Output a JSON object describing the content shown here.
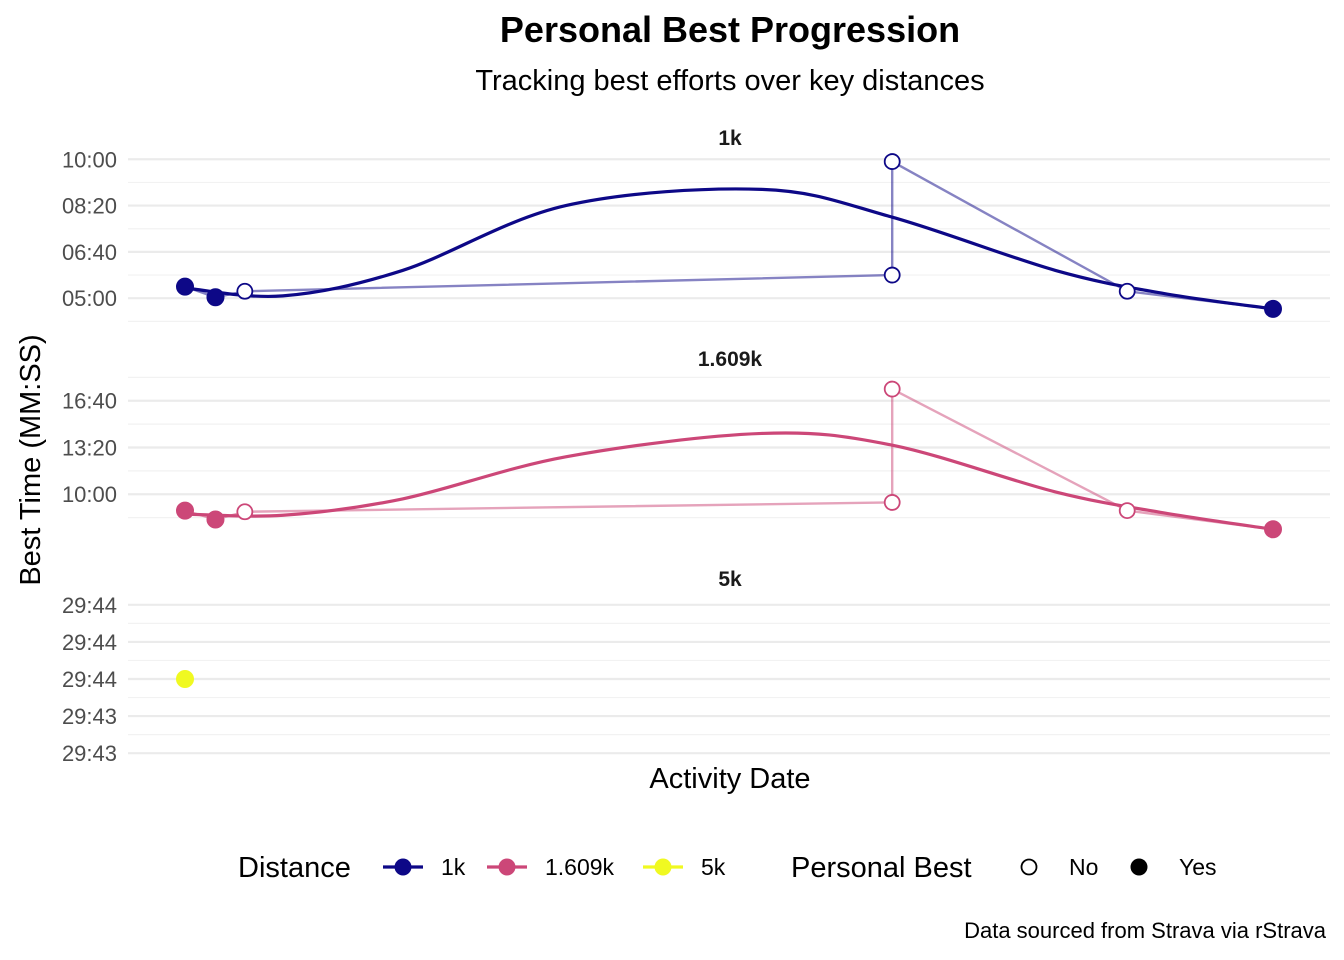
{
  "chart_data": {
    "type": "line",
    "title": "Personal Best Progression",
    "subtitle": "Tracking best efforts over key distances",
    "xlabel": "Activity Date",
    "ylabel": "Best Time (MM:SS)",
    "caption": "Data sourced from Strava via rStrava",
    "x_range": [
      0,
      1
    ],
    "facets": [
      {
        "name": "1k",
        "color": "#0d0887",
        "ylim": [
          240,
          620
        ],
        "y_ticks": [
          {
            "value": 300,
            "label": "05:00"
          },
          {
            "value": 400,
            "label": "06:40"
          },
          {
            "value": 500,
            "label": "08:20"
          },
          {
            "value": 600,
            "label": "10:00"
          }
        ],
        "points": [
          {
            "x": 0.0,
            "y": 325,
            "pb": true
          },
          {
            "x": 0.028,
            "y": 302,
            "pb": true
          },
          {
            "x": 0.055,
            "y": 315,
            "pb": false
          },
          {
            "x": 0.65,
            "y": 350,
            "pb": false
          },
          {
            "x": 0.65,
            "y": 595,
            "pb": false
          },
          {
            "x": 0.866,
            "y": 315,
            "pb": false
          },
          {
            "x": 1.0,
            "y": 277,
            "pb": true
          }
        ],
        "smooth": [
          {
            "x": 0.0,
            "y": 322
          },
          {
            "x": 0.09,
            "y": 305
          },
          {
            "x": 0.2,
            "y": 360
          },
          {
            "x": 0.35,
            "y": 500
          },
          {
            "x": 0.53,
            "y": 535
          },
          {
            "x": 0.65,
            "y": 475
          },
          {
            "x": 0.8,
            "y": 360
          },
          {
            "x": 0.9,
            "y": 310
          },
          {
            "x": 1.0,
            "y": 277
          }
        ]
      },
      {
        "name": "1.609k",
        "color": "#cc4778",
        "ylim": [
          370,
          1140
        ],
        "y_ticks": [
          {
            "value": 600,
            "label": "10:00"
          },
          {
            "value": 800,
            "label": "13:20"
          },
          {
            "value": 1000,
            "label": "16:40"
          }
        ],
        "points": [
          {
            "x": 0.0,
            "y": 530,
            "pb": true
          },
          {
            "x": 0.028,
            "y": 492,
            "pb": true
          },
          {
            "x": 0.055,
            "y": 525,
            "pb": false
          },
          {
            "x": 0.65,
            "y": 565,
            "pb": false
          },
          {
            "x": 0.65,
            "y": 1050,
            "pb": false
          },
          {
            "x": 0.866,
            "y": 530,
            "pb": false
          },
          {
            "x": 1.0,
            "y": 450,
            "pb": true
          }
        ],
        "smooth": [
          {
            "x": 0.0,
            "y": 515
          },
          {
            "x": 0.09,
            "y": 510
          },
          {
            "x": 0.2,
            "y": 580
          },
          {
            "x": 0.35,
            "y": 760
          },
          {
            "x": 0.53,
            "y": 860
          },
          {
            "x": 0.65,
            "y": 810
          },
          {
            "x": 0.8,
            "y": 610
          },
          {
            "x": 0.9,
            "y": 520
          },
          {
            "x": 1.0,
            "y": 450
          }
        ]
      },
      {
        "name": "5k",
        "color": "#f0f921",
        "ylim": [
          1783.4,
          1784.6
        ],
        "y_ticks": [
          {
            "value": 1783.5,
            "label": "29:43"
          },
          {
            "value": 1783.75,
            "label": "29:43"
          },
          {
            "value": 1784.0,
            "label": "29:44"
          },
          {
            "value": 1784.25,
            "label": "29:44"
          },
          {
            "value": 1784.5,
            "label": "29:44"
          }
        ],
        "points": [
          {
            "x": 0.0,
            "y": 1784.0,
            "pb": true
          }
        ],
        "smooth": []
      }
    ],
    "legend": {
      "placement": "bottom",
      "distance": {
        "title": "Distance",
        "entries": [
          "1k",
          "1.609k",
          "5k"
        ]
      },
      "personal_best": {
        "title": "Personal Best",
        "entries": [
          {
            "label": "No",
            "pb": false
          },
          {
            "label": "Yes",
            "pb": true
          }
        ]
      }
    }
  }
}
